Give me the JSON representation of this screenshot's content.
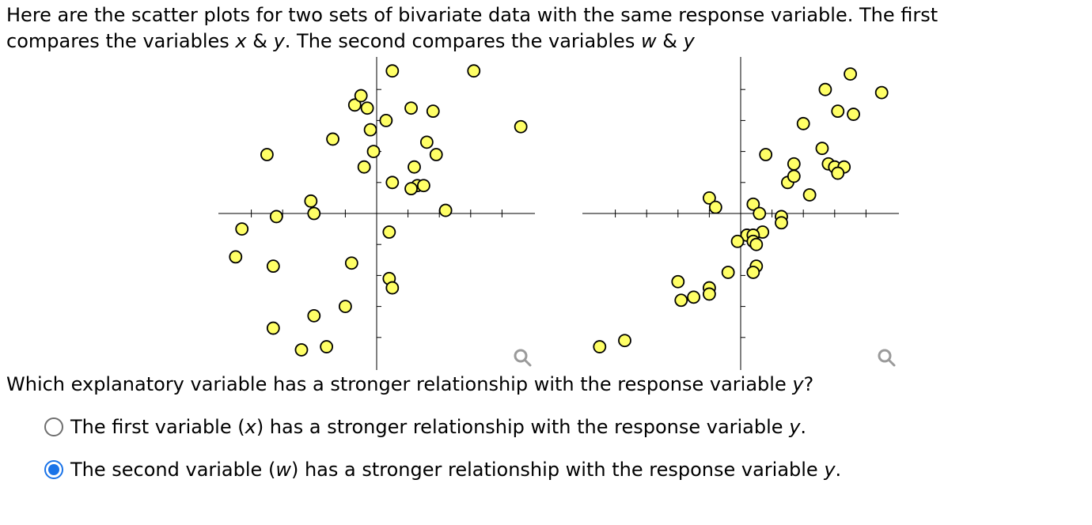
{
  "intro": {
    "line1": "Here are the scatter plots for two sets of bivariate data with the same response variable. The first",
    "line2_a": "compares the variables ",
    "x_var": "x",
    "amp1": " & ",
    "y_var1": "y",
    "line2_b": ". The second compares the variables ",
    "w_var": "w",
    "amp2": " & ",
    "y_var2": "y"
  },
  "question": {
    "text": "Which explanatory variable has a stronger relationship with the response variable ",
    "var": "y",
    "end": "?"
  },
  "options": [
    {
      "before": "The first variable (",
      "var": "x",
      "middle": ") has a stronger relationship with the response variable ",
      "var2": "y",
      "after": ".",
      "checked": false
    },
    {
      "before": "The second variable (",
      "var": "w",
      "middle": ") has a stronger relationship with the response variable ",
      "var2": "y",
      "after": ".",
      "checked": true
    }
  ],
  "zoom_icon": "magnifier-icon",
  "colors": {
    "point_fill": "#ffff66",
    "radio_checked": "#1a73e8"
  },
  "chart_data": [
    {
      "type": "scatter",
      "xlim": [
        -5,
        5
      ],
      "ylim": [
        -5,
        5
      ],
      "points": [
        [
          0.5,
          4.6
        ],
        [
          3.1,
          4.6
        ],
        [
          4.6,
          2.8
        ],
        [
          -3.5,
          1.9
        ],
        [
          -1.4,
          2.4
        ],
        [
          -0.7,
          3.5
        ],
        [
          -0.5,
          3.8
        ],
        [
          -0.3,
          3.4
        ],
        [
          -0.2,
          2.7
        ],
        [
          0.3,
          3.0
        ],
        [
          1.1,
          3.4
        ],
        [
          1.8,
          3.3
        ],
        [
          1.6,
          2.3
        ],
        [
          1.9,
          1.9
        ],
        [
          -0.1,
          2.0
        ],
        [
          -0.4,
          1.5
        ],
        [
          1.2,
          1.5
        ],
        [
          0.5,
          1.0
        ],
        [
          1.3,
          0.9
        ],
        [
          1.5,
          0.9
        ],
        [
          1.1,
          0.8
        ],
        [
          2.2,
          0.1
        ],
        [
          -2.1,
          0.4
        ],
        [
          -2.0,
          0.0
        ],
        [
          -3.2,
          -0.1
        ],
        [
          -4.3,
          -0.5
        ],
        [
          -4.5,
          -1.4
        ],
        [
          -3.3,
          -1.7
        ],
        [
          -0.8,
          -1.6
        ],
        [
          0.4,
          -0.6
        ],
        [
          0.4,
          -2.1
        ],
        [
          0.5,
          -2.4
        ],
        [
          -1.0,
          -3.0
        ],
        [
          -2.0,
          -3.3
        ],
        [
          -3.3,
          -3.7
        ],
        [
          -2.4,
          -4.4
        ],
        [
          -1.6,
          -4.3
        ]
      ]
    },
    {
      "type": "scatter",
      "xlim": [
        -5,
        5
      ],
      "ylim": [
        -5,
        5
      ],
      "points": [
        [
          3.5,
          4.5
        ],
        [
          2.7,
          4.0
        ],
        [
          4.5,
          3.9
        ],
        [
          3.1,
          3.3
        ],
        [
          3.6,
          3.2
        ],
        [
          2.0,
          2.9
        ],
        [
          0.8,
          1.9
        ],
        [
          2.6,
          2.1
        ],
        [
          1.7,
          1.6
        ],
        [
          2.8,
          1.6
        ],
        [
          3.0,
          1.5
        ],
        [
          3.3,
          1.5
        ],
        [
          3.1,
          1.3
        ],
        [
          1.5,
          1.0
        ],
        [
          1.7,
          1.2
        ],
        [
          2.2,
          0.6
        ],
        [
          -1.0,
          0.5
        ],
        [
          -0.8,
          0.2
        ],
        [
          0.4,
          0.3
        ],
        [
          0.6,
          0.0
        ],
        [
          1.3,
          -0.1
        ],
        [
          1.3,
          -0.3
        ],
        [
          0.7,
          -0.6
        ],
        [
          0.2,
          -0.7
        ],
        [
          0.4,
          -0.7
        ],
        [
          0.4,
          -0.9
        ],
        [
          -0.1,
          -0.9
        ],
        [
          0.5,
          -1.0
        ],
        [
          0.5,
          -1.7
        ],
        [
          0.4,
          -1.9
        ],
        [
          -0.4,
          -1.9
        ],
        [
          -2.0,
          -2.2
        ],
        [
          -1.0,
          -2.4
        ],
        [
          -1.0,
          -2.6
        ],
        [
          -1.9,
          -2.8
        ],
        [
          -1.5,
          -2.7
        ],
        [
          -4.5,
          -4.3
        ],
        [
          -3.7,
          -4.1
        ]
      ]
    }
  ]
}
